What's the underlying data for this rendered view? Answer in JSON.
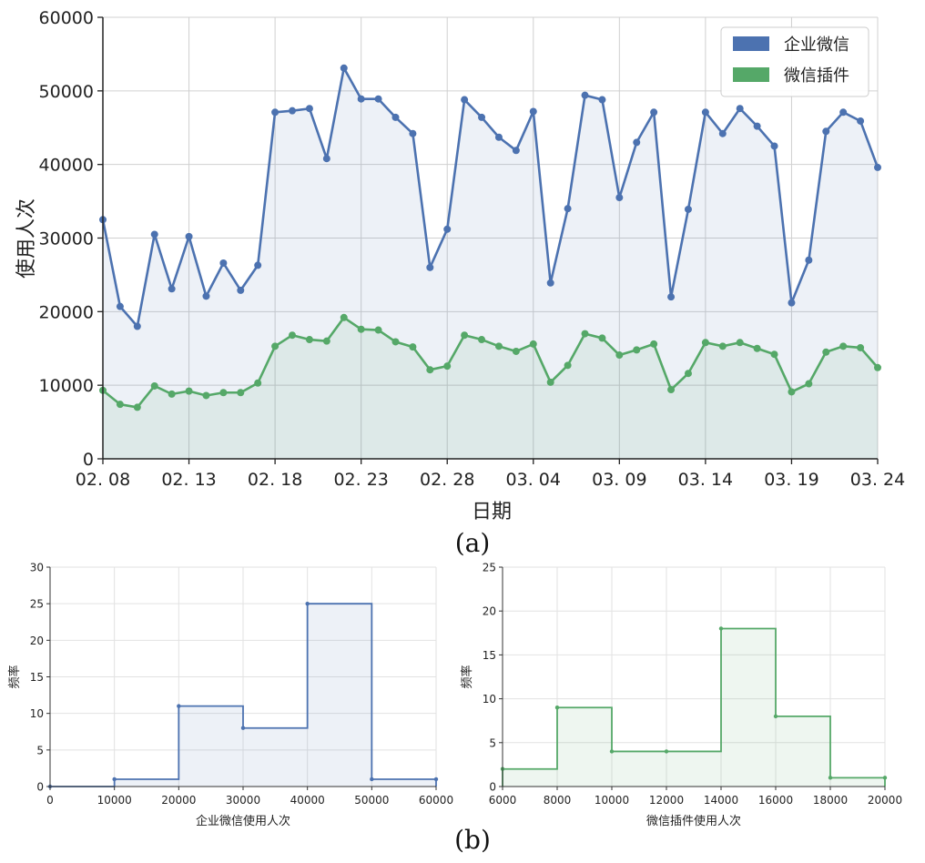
{
  "figure": {
    "caption_a": "(a)",
    "caption_b": "(b)"
  },
  "chart_data": [
    {
      "type": "line",
      "xlabel": "日期",
      "ylabel": "使用人次",
      "ylim": [
        0,
        60000
      ],
      "yticks": [
        "0",
        "10000",
        "20000",
        "30000",
        "40000",
        "50000",
        "60000"
      ],
      "xticks": [
        "02. 08",
        "02. 13",
        "02. 18",
        "02. 23",
        "02. 28",
        "03. 04",
        "03. 09",
        "03. 14",
        "03. 19",
        "03. 24"
      ],
      "x": [
        "02-08",
        "02-09",
        "02-10",
        "02-11",
        "02-12",
        "02-13",
        "02-14",
        "02-15",
        "02-16",
        "02-17",
        "02-18",
        "02-19",
        "02-20",
        "02-21",
        "02-22",
        "02-23",
        "02-24",
        "02-25",
        "02-26",
        "02-27",
        "02-28",
        "02-29",
        "03-01",
        "03-02",
        "03-03",
        "03-04",
        "03-05",
        "03-06",
        "03-07",
        "03-08",
        "03-09",
        "03-10",
        "03-11",
        "03-12",
        "03-13",
        "03-14",
        "03-15",
        "03-16",
        "03-17",
        "03-18",
        "03-19",
        "03-20",
        "03-21",
        "03-22",
        "03-23",
        "03-24"
      ],
      "grid": true,
      "area_fill": true,
      "legend_position": "top-right",
      "series": [
        {
          "name": "企业微信",
          "color": "#4C72B0",
          "values": [
            32500,
            20700,
            18000,
            30500,
            23100,
            30200,
            22100,
            26600,
            22900,
            26300,
            47100,
            47300,
            47600,
            40800,
            53100,
            48900,
            48900,
            46400,
            44200,
            26000,
            31200,
            48800,
            46400,
            43700,
            41900,
            47200,
            23900,
            34000,
            49400,
            48800,
            35500,
            43000,
            47100,
            22000,
            33900,
            47100,
            44200,
            47600,
            45200,
            42500,
            21200,
            27000,
            44500,
            47100,
            45900,
            39600
          ]
        },
        {
          "name": "微信插件",
          "color": "#55A868",
          "values": [
            9300,
            7400,
            7000,
            9900,
            8800,
            9200,
            8600,
            9000,
            9000,
            10300,
            15300,
            16800,
            16200,
            16000,
            19200,
            17600,
            17500,
            15900,
            15200,
            12100,
            12600,
            16800,
            16200,
            15300,
            14600,
            15600,
            10400,
            12700,
            17000,
            16400,
            14100,
            14800,
            15600,
            9400,
            11600,
            15800,
            15300,
            15800,
            15000,
            14200,
            9100,
            10200,
            14500,
            15300,
            15100,
            12400
          ]
        }
      ]
    },
    {
      "type": "histogram",
      "xlabel": "企业微信使用人次",
      "ylabel": "频率",
      "color": "#4C72B0",
      "xlim": [
        0,
        60000
      ],
      "ylim": [
        0,
        30
      ],
      "xticks": [
        "0",
        "10000",
        "20000",
        "30000",
        "40000",
        "50000",
        "60000"
      ],
      "yticks": [
        "0",
        "5",
        "10",
        "15",
        "20",
        "25",
        "30"
      ],
      "grid": true,
      "bins": [
        {
          "start": 0,
          "end": 10000,
          "count": 0
        },
        {
          "start": 10000,
          "end": 20000,
          "count": 1
        },
        {
          "start": 20000,
          "end": 30000,
          "count": 11
        },
        {
          "start": 30000,
          "end": 40000,
          "count": 8
        },
        {
          "start": 40000,
          "end": 50000,
          "count": 25
        },
        {
          "start": 50000,
          "end": 60000,
          "count": 1
        }
      ]
    },
    {
      "type": "histogram",
      "xlabel": "微信插件使用人次",
      "ylabel": "频率",
      "color": "#55A868",
      "xlim": [
        6000,
        20000
      ],
      "ylim": [
        0,
        25
      ],
      "xticks": [
        "6000",
        "8000",
        "10000",
        "12000",
        "14000",
        "16000",
        "18000",
        "20000"
      ],
      "yticks": [
        "0",
        "5",
        "10",
        "15",
        "20",
        "25"
      ],
      "grid": true,
      "bins": [
        {
          "start": 6000,
          "end": 8000,
          "count": 2
        },
        {
          "start": 8000,
          "end": 10000,
          "count": 9
        },
        {
          "start": 10000,
          "end": 12000,
          "count": 4
        },
        {
          "start": 12000,
          "end": 14000,
          "count": 4
        },
        {
          "start": 14000,
          "end": 16000,
          "count": 18
        },
        {
          "start": 16000,
          "end": 18000,
          "count": 8
        },
        {
          "start": 18000,
          "end": 20000,
          "count": 1
        }
      ]
    }
  ]
}
